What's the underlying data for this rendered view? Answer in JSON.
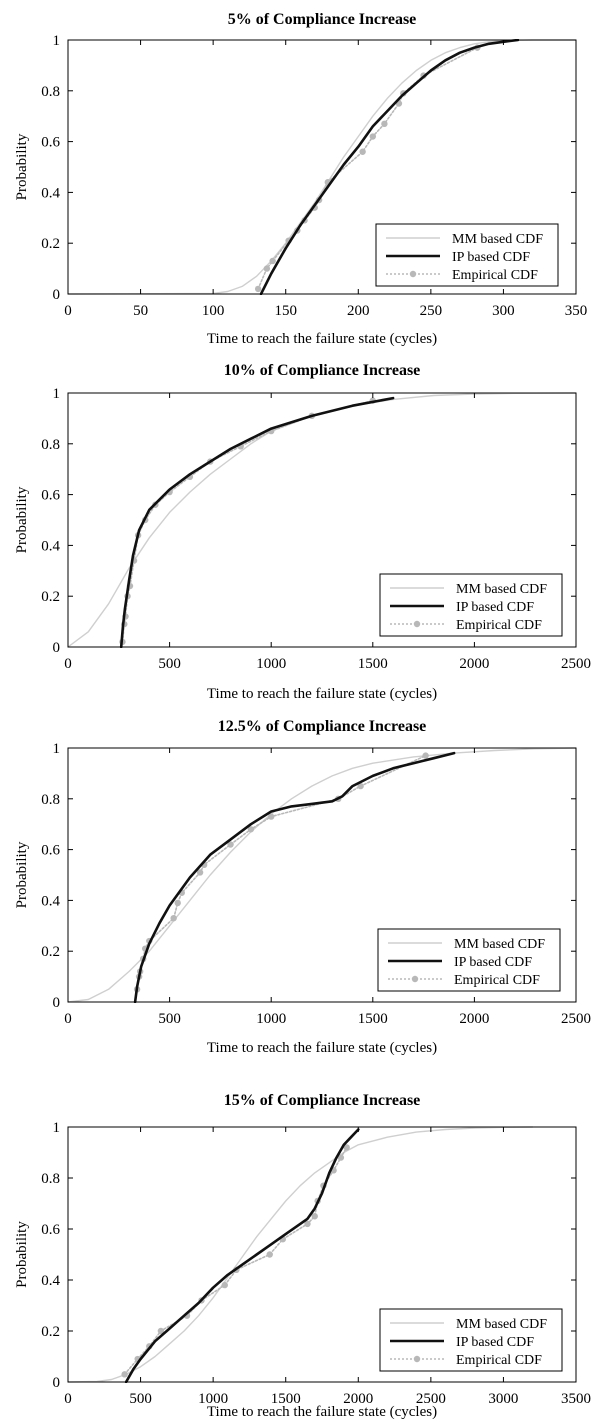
{
  "colors": {
    "mm": "#cfcfcf",
    "ip": "#111111",
    "emp": "#b8b8b8",
    "axis": "#000000"
  },
  "chart_data": [
    {
      "type": "line",
      "title": "5% of Compliance Increase",
      "xlabel": "Time to reach the failure state (cycles)",
      "ylabel": "Probability",
      "xlim": [
        0,
        350
      ],
      "ylim": [
        0,
        1
      ],
      "xticks": [
        "0",
        "50",
        "100",
        "150",
        "200",
        "250",
        "300",
        "350"
      ],
      "yticks": [
        "0",
        "0.2",
        "0.4",
        "0.6",
        "0.8",
        "1"
      ],
      "legend_position": "bottom-right",
      "series": [
        {
          "name": "MM based CDF",
          "style": "thin-gray",
          "x": [
            0,
            100,
            110,
            120,
            130,
            140,
            150,
            160,
            170,
            180,
            190,
            200,
            210,
            220,
            230,
            240,
            250,
            260,
            270,
            280,
            290,
            300,
            310,
            320,
            350
          ],
          "y": [
            0,
            0.002,
            0.01,
            0.03,
            0.07,
            0.13,
            0.2,
            0.28,
            0.36,
            0.45,
            0.54,
            0.62,
            0.7,
            0.77,
            0.83,
            0.88,
            0.92,
            0.95,
            0.97,
            0.985,
            0.993,
            0.997,
            0.999,
            1,
            1
          ]
        },
        {
          "name": "IP based CDF",
          "style": "thick-black",
          "x": [
            133,
            140,
            150,
            160,
            170,
            180,
            190,
            200,
            210,
            220,
            230,
            240,
            250,
            260,
            270,
            280,
            290,
            300,
            310
          ],
          "y": [
            0,
            0.08,
            0.18,
            0.27,
            0.35,
            0.43,
            0.51,
            0.58,
            0.66,
            0.72,
            0.78,
            0.83,
            0.88,
            0.92,
            0.95,
            0.97,
            0.985,
            0.993,
            1
          ]
        },
        {
          "name": "Empirical CDF",
          "style": "dotted-gray-markers",
          "x": [
            131,
            137,
            141,
            152,
            158,
            163,
            170,
            173,
            179,
            203,
            210,
            218,
            228,
            231,
            245,
            282
          ],
          "y": [
            0.02,
            0.1,
            0.13,
            0.21,
            0.25,
            0.29,
            0.34,
            0.37,
            0.44,
            0.56,
            0.62,
            0.67,
            0.75,
            0.79,
            0.86,
            0.97
          ]
        }
      ]
    },
    {
      "type": "line",
      "title": "10% of Compliance Increase",
      "xlabel": "Time to reach the failure state (cycles)",
      "ylabel": "Probability",
      "xlim": [
        0,
        2500
      ],
      "ylim": [
        0,
        1
      ],
      "xticks": [
        "0",
        "500",
        "1000",
        "1500",
        "2000",
        "2500"
      ],
      "yticks": [
        "0",
        "0.2",
        "0.4",
        "0.6",
        "0.8",
        "1"
      ],
      "legend_position": "bottom-right",
      "series": [
        {
          "name": "MM based CDF",
          "style": "thin-gray",
          "x": [
            0,
            100,
            200,
            300,
            400,
            500,
            600,
            700,
            800,
            900,
            1000,
            1200,
            1400,
            1600,
            1800,
            2000,
            2200,
            2500
          ],
          "y": [
            0,
            0.06,
            0.17,
            0.31,
            0.43,
            0.53,
            0.61,
            0.68,
            0.74,
            0.8,
            0.85,
            0.91,
            0.95,
            0.975,
            0.99,
            0.996,
            0.999,
            1
          ]
        },
        {
          "name": "IP based CDF",
          "style": "thick-black",
          "x": [
            262,
            270,
            280,
            300,
            320,
            350,
            400,
            450,
            500,
            600,
            700,
            800,
            900,
            1000,
            1200,
            1400,
            1600
          ],
          "y": [
            0,
            0.08,
            0.15,
            0.26,
            0.36,
            0.46,
            0.54,
            0.58,
            0.62,
            0.68,
            0.73,
            0.78,
            0.82,
            0.86,
            0.91,
            0.95,
            0.98
          ]
        },
        {
          "name": "Empirical CDF",
          "style": "dotted-gray-markers",
          "x": [
            268,
            277,
            283,
            293,
            305,
            325,
            345,
            380,
            430,
            500,
            600,
            700,
            850,
            1000,
            1200,
            1500
          ],
          "y": [
            0.02,
            0.09,
            0.12,
            0.2,
            0.24,
            0.34,
            0.44,
            0.5,
            0.56,
            0.61,
            0.67,
            0.73,
            0.79,
            0.85,
            0.91,
            0.97
          ]
        }
      ]
    },
    {
      "type": "line",
      "title": "12.5% of Compliance Increase",
      "xlabel": "Time to reach the failure state (cycles)",
      "ylabel": "Probability",
      "xlim": [
        0,
        2500
      ],
      "ylim": [
        0,
        1
      ],
      "xticks": [
        "0",
        "500",
        "1000",
        "1500",
        "2000",
        "2500"
      ],
      "yticks": [
        "0",
        "0.2",
        "0.4",
        "0.6",
        "0.8",
        "1"
      ],
      "legend_position": "bottom-right",
      "series": [
        {
          "name": "MM based CDF",
          "style": "thin-gray",
          "x": [
            0,
            100,
            200,
            300,
            400,
            500,
            600,
            700,
            800,
            900,
            1000,
            1100,
            1200,
            1300,
            1400,
            1500,
            1700,
            1900,
            2100,
            2300,
            2500
          ],
          "y": [
            0,
            0.01,
            0.05,
            0.12,
            0.2,
            0.3,
            0.4,
            0.5,
            0.59,
            0.67,
            0.74,
            0.8,
            0.85,
            0.89,
            0.92,
            0.94,
            0.965,
            0.98,
            0.99,
            0.997,
            1
          ]
        },
        {
          "name": "IP based CDF",
          "style": "thick-black",
          "x": [
            330,
            340,
            360,
            400,
            450,
            500,
            600,
            700,
            800,
            900,
            1000,
            1100,
            1200,
            1300,
            1350,
            1400,
            1500,
            1600,
            1700,
            1800,
            1900
          ],
          "y": [
            0,
            0.06,
            0.14,
            0.23,
            0.31,
            0.38,
            0.49,
            0.58,
            0.64,
            0.7,
            0.75,
            0.77,
            0.78,
            0.79,
            0.81,
            0.85,
            0.89,
            0.92,
            0.94,
            0.96,
            0.98
          ]
        },
        {
          "name": "Empirical CDF",
          "style": "dotted-gray-markers",
          "x": [
            340,
            350,
            355,
            370,
            380,
            400,
            520,
            540,
            560,
            650,
            670,
            800,
            900,
            1000,
            1330,
            1440,
            1760
          ],
          "y": [
            0.05,
            0.1,
            0.12,
            0.17,
            0.21,
            0.24,
            0.33,
            0.39,
            0.43,
            0.51,
            0.54,
            0.62,
            0.68,
            0.73,
            0.8,
            0.85,
            0.97
          ]
        }
      ]
    },
    {
      "type": "line",
      "title": "15% of Compliance Increase",
      "xlabel": "Time to reach the failure state (cycles)",
      "ylabel": "Probability",
      "xlim": [
        0,
        3500
      ],
      "ylim": [
        0,
        1
      ],
      "xticks": [
        "0",
        "500",
        "1000",
        "1500",
        "2000",
        "2500",
        "3000",
        "3500"
      ],
      "yticks": [
        "0",
        "0.2",
        "0.4",
        "0.6",
        "0.8",
        "1"
      ],
      "legend_position": "bottom-right",
      "series": [
        {
          "name": "MM based CDF",
          "style": "thin-gray",
          "x": [
            0,
            200,
            300,
            400,
            500,
            600,
            700,
            800,
            900,
            1000,
            1100,
            1200,
            1300,
            1400,
            1500,
            1600,
            1700,
            1800,
            1900,
            2000,
            2200,
            2400,
            2600,
            2800,
            3000,
            3200
          ],
          "y": [
            0,
            0.002,
            0.01,
            0.03,
            0.06,
            0.1,
            0.15,
            0.2,
            0.26,
            0.33,
            0.41,
            0.49,
            0.57,
            0.64,
            0.71,
            0.77,
            0.82,
            0.86,
            0.9,
            0.93,
            0.96,
            0.98,
            0.99,
            0.996,
            0.999,
            1
          ]
        },
        {
          "name": "IP based CDF",
          "style": "thick-black",
          "x": [
            400,
            450,
            500,
            600,
            700,
            800,
            900,
            1000,
            1100,
            1200,
            1300,
            1400,
            1500,
            1600,
            1650,
            1700,
            1750,
            1800,
            1850,
            1900,
            1950,
            2000
          ],
          "y": [
            0,
            0.05,
            0.09,
            0.16,
            0.21,
            0.26,
            0.31,
            0.37,
            0.42,
            0.46,
            0.5,
            0.54,
            0.58,
            0.62,
            0.64,
            0.68,
            0.74,
            0.82,
            0.88,
            0.93,
            0.96,
            0.99
          ]
        },
        {
          "name": "Empirical CDF",
          "style": "dotted-gray-markers",
          "x": [
            390,
            480,
            560,
            640,
            820,
            920,
            1080,
            1160,
            1390,
            1480,
            1650,
            1700,
            1720,
            1760,
            1830,
            1880,
            1920
          ],
          "y": [
            0.03,
            0.09,
            0.14,
            0.2,
            0.26,
            0.32,
            0.38,
            0.44,
            0.5,
            0.56,
            0.62,
            0.65,
            0.71,
            0.77,
            0.83,
            0.88,
            0.92
          ]
        }
      ]
    }
  ]
}
